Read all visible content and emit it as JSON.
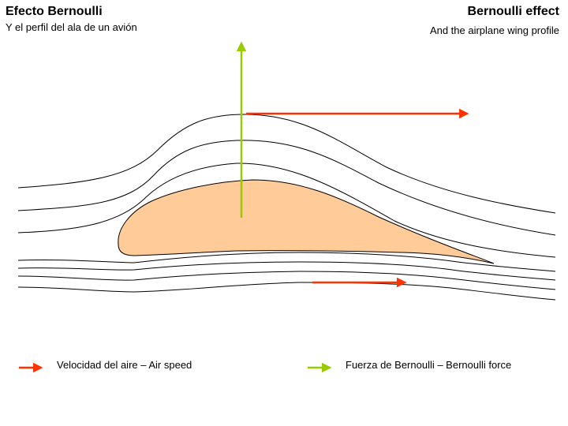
{
  "header": {
    "title_es": "Efecto Bernoulli",
    "subtitle_es": "Y el perfil del ala de un avión",
    "title_en": "Bernoulli effect",
    "subtitle_en": "And the airplane wing profile"
  },
  "legend": {
    "air_speed": "Velocidad del aire – Air speed",
    "bernoulli_force": "Fuerza de Bernoulli – Bernoulli force"
  },
  "colors": {
    "air_speed_arrow": "#ff3300",
    "force_arrow": "#99cc00",
    "wing_fill": "#ffcc99",
    "streamline": "#000000"
  }
}
